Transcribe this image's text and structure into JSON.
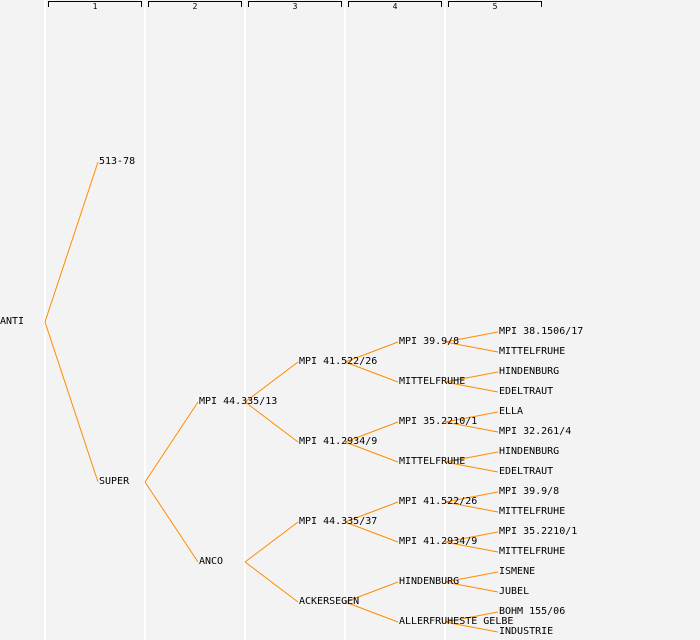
{
  "header": {
    "generations": [
      "1",
      "2",
      "3",
      "4",
      "5"
    ]
  },
  "colors": {
    "edge": "#ff8c00",
    "background": "#f3f3f3"
  },
  "tree": {
    "name": "ANTI",
    "children": [
      {
        "name": "513-78",
        "children": []
      },
      {
        "name": "SUPER",
        "children": [
          {
            "name": "MPI 44.335/13",
            "children": [
              {
                "name": "MPI 41.522/26",
                "children": [
                  {
                    "name": "MPI 39.9/8",
                    "children": [
                      {
                        "name": "MPI 38.1506/17",
                        "children": []
                      },
                      {
                        "name": "MITTELFRUHE",
                        "children": []
                      }
                    ]
                  },
                  {
                    "name": "MITTELFRUHE",
                    "children": [
                      {
                        "name": "HINDENBURG",
                        "children": []
                      },
                      {
                        "name": "EDELTRAUT",
                        "children": []
                      }
                    ]
                  }
                ]
              },
              {
                "name": "MPI 41.2934/9",
                "children": [
                  {
                    "name": "MPI 35.2210/1",
                    "children": [
                      {
                        "name": "ELLA",
                        "children": []
                      },
                      {
                        "name": "MPI 32.261/4",
                        "children": []
                      }
                    ]
                  },
                  {
                    "name": "MITTELFRUHE",
                    "children": [
                      {
                        "name": "HINDENBURG",
                        "children": []
                      },
                      {
                        "name": "EDELTRAUT",
                        "children": []
                      }
                    ]
                  }
                ]
              }
            ]
          },
          {
            "name": "ANCO",
            "children": [
              {
                "name": "MPI 44.335/37",
                "children": [
                  {
                    "name": "MPI 41.522/26",
                    "children": [
                      {
                        "name": "MPI 39.9/8",
                        "children": []
                      },
                      {
                        "name": "MITTELFRUHE",
                        "children": []
                      }
                    ]
                  },
                  {
                    "name": "MPI 41.2934/9",
                    "children": [
                      {
                        "name": "MPI 35.2210/1",
                        "children": []
                      },
                      {
                        "name": "MITTELFRUHE",
                        "children": []
                      }
                    ]
                  }
                ]
              },
              {
                "name": "ACKERSEGEN",
                "children": [
                  {
                    "name": "HINDENBURG",
                    "children": [
                      {
                        "name": "ISMENE",
                        "children": []
                      },
                      {
                        "name": "JUBEL",
                        "children": []
                      }
                    ]
                  },
                  {
                    "name": "ALLERFRUHESTE GELBE",
                    "children": [
                      {
                        "name": "BOHM 155/06",
                        "children": []
                      },
                      {
                        "name": "INDUSTRIE",
                        "children": []
                      }
                    ]
                  }
                ]
              }
            ]
          }
        ]
      }
    ]
  }
}
